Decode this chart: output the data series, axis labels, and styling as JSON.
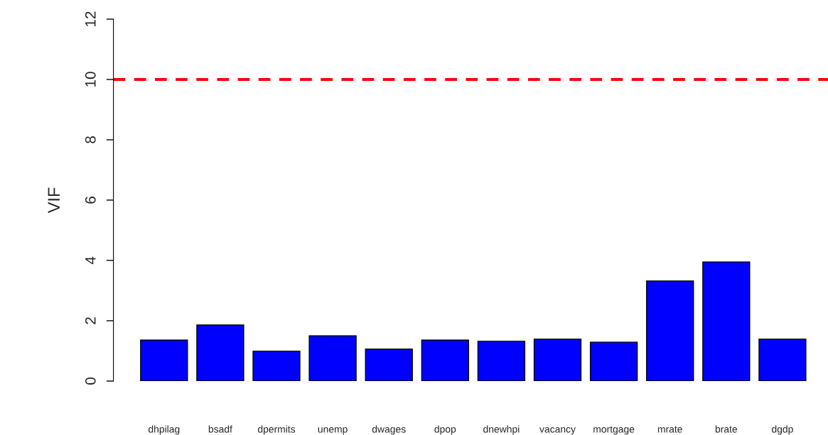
{
  "chart_data": {
    "type": "bar",
    "ylabel": "VIF",
    "categories": [
      "dhpilag",
      "bsadf",
      "dpermits",
      "unemp",
      "dwages",
      "dpop",
      "dnewhpi",
      "vacancy",
      "mortgage",
      "mrate",
      "brate",
      "dgdp"
    ],
    "values": [
      1.36,
      1.86,
      0.99,
      1.5,
      1.06,
      1.36,
      1.32,
      1.39,
      1.29,
      3.32,
      3.95,
      1.39
    ],
    "color": "#0000ff",
    "ylim": [
      0,
      12
    ],
    "yticks": [
      0,
      2,
      4,
      6,
      8,
      10,
      12
    ],
    "grid": false,
    "ref_lines": [
      {
        "axis": "y",
        "value": 10,
        "color": "#ff0000",
        "line_style": "dashed"
      }
    ]
  }
}
